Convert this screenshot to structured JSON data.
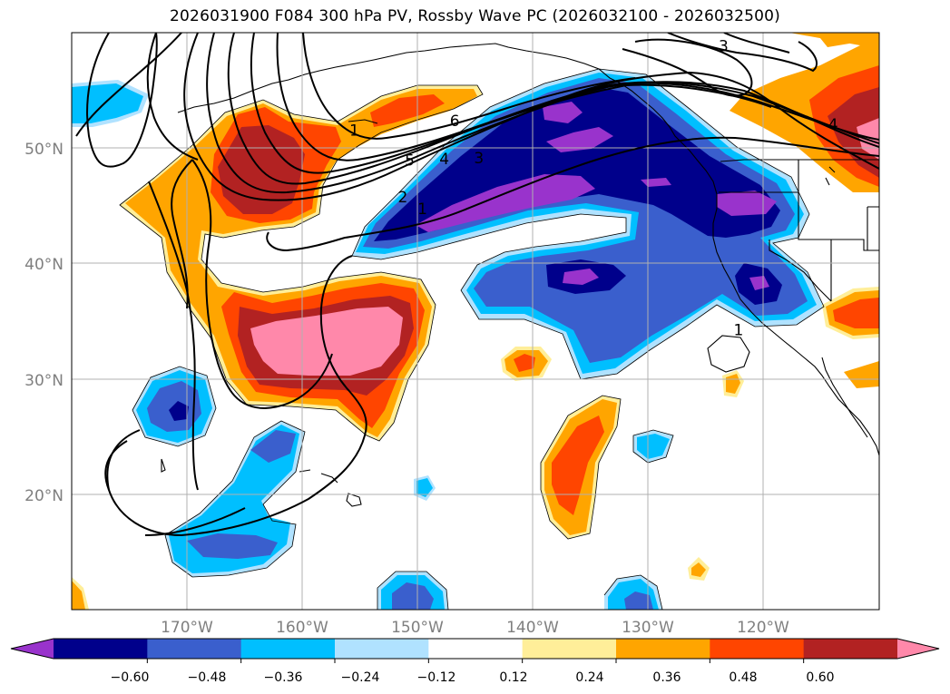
{
  "title": "2026031900 F084 300 hPa PV, Rossby Wave PC (2026032100 - 2026032500)",
  "map": {
    "lon_range": [
      -180,
      -110
    ],
    "lat_range": [
      10,
      60
    ],
    "lat_ticks": [
      {
        "value": 50,
        "label": "50°N"
      },
      {
        "value": 40,
        "label": "40°N"
      },
      {
        "value": 30,
        "label": "30°N"
      },
      {
        "value": 20,
        "label": "20°N"
      }
    ],
    "lon_ticks": [
      {
        "value": -170,
        "label": "170°W"
      },
      {
        "value": -160,
        "label": "160°W"
      },
      {
        "value": -150,
        "label": "150°W"
      },
      {
        "value": -140,
        "label": "140°W"
      },
      {
        "value": -130,
        "label": "130°W"
      },
      {
        "value": -120,
        "label": "120°W"
      }
    ],
    "contour_labels": [
      {
        "text": "3",
        "lon": -123.5,
        "lat": 58.7
      },
      {
        "text": "6",
        "lon": -146.8,
        "lat": 52.2
      },
      {
        "text": "5",
        "lon": -150.7,
        "lat": 48.8
      },
      {
        "text": "4",
        "lon": -147.7,
        "lat": 48.9
      },
      {
        "text": "3",
        "lon": -144.7,
        "lat": 49.0
      },
      {
        "text": "2",
        "lon": -151.3,
        "lat": 45.6
      },
      {
        "text": "1",
        "lon": -149.6,
        "lat": 44.6
      },
      {
        "text": "1",
        "lon": -155.5,
        "lat": 51.4
      },
      {
        "text": "4",
        "lon": -114,
        "lat": 51.9
      },
      {
        "text": "1",
        "lon": -122.2,
        "lat": 34.1
      }
    ]
  },
  "colorbar": {
    "colors": [
      "#9933cc",
      "#00008b",
      "#3a5fcd",
      "#00bfff",
      "#b0e2ff",
      "#ffffff",
      "#ffee99",
      "#ffa500",
      "#ff4500",
      "#b22222",
      "#ff88aa"
    ],
    "tick_labels": [
      "−0.60",
      "−0.48",
      "−0.36",
      "−0.24",
      "−0.12",
      "0.12",
      "0.24",
      "0.36",
      "0.48",
      "0.60"
    ]
  }
}
